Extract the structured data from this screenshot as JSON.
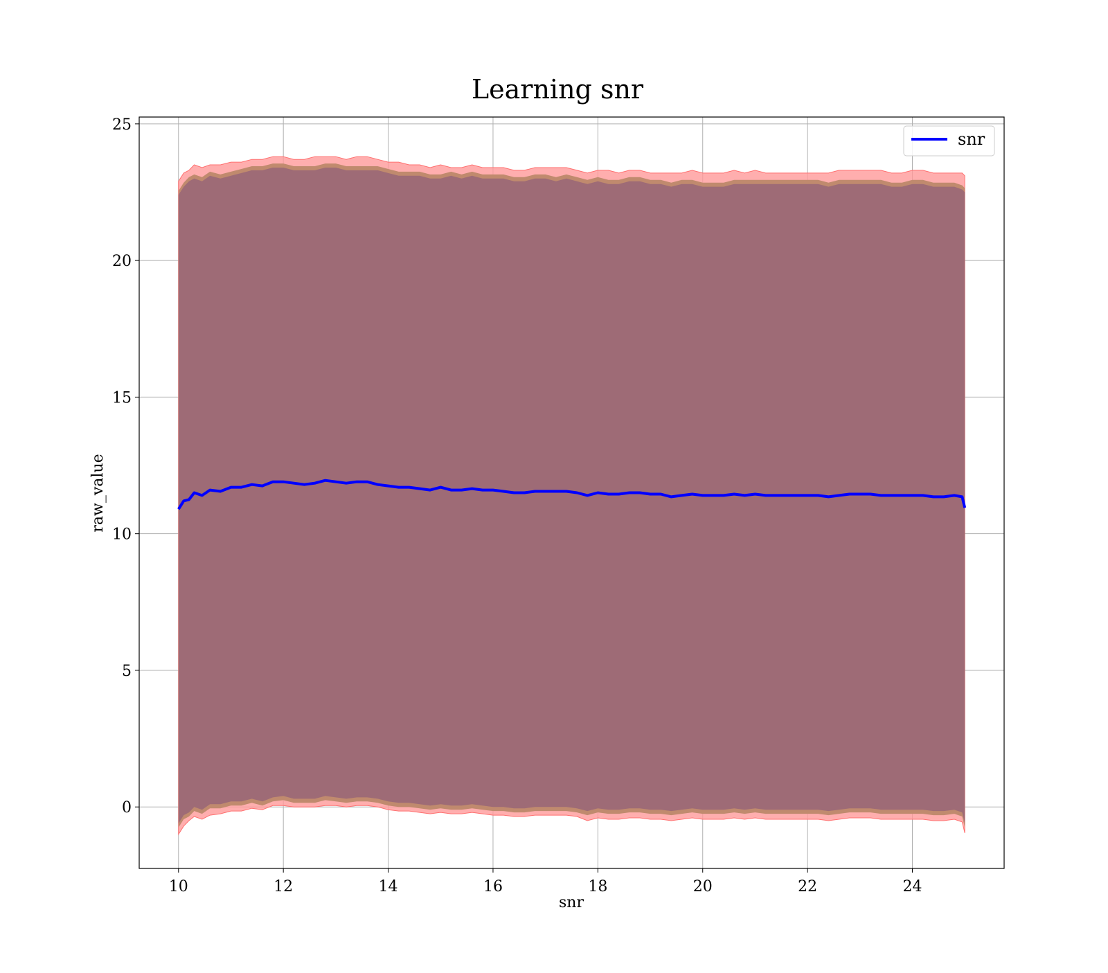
{
  "chart_data": {
    "type": "line",
    "title": "Learning snr",
    "xlabel": "snr",
    "ylabel": "raw_value",
    "xlim": [
      9.25,
      25.75
    ],
    "ylim": [
      -2.25,
      25.25
    ],
    "x_ticks": [
      10,
      12,
      14,
      16,
      18,
      20,
      22,
      24
    ],
    "y_ticks": [
      0,
      5,
      10,
      15,
      20,
      25
    ],
    "x_tick_labels": [
      "10",
      "12",
      "14",
      "16",
      "18",
      "20",
      "22",
      "24"
    ],
    "y_tick_labels": [
      "0",
      "5",
      "10",
      "15",
      "20",
      "25"
    ],
    "grid": true,
    "legend": {
      "position": "top-right",
      "entries": [
        {
          "label": "snr",
          "color": "#0000ff"
        }
      ]
    },
    "colors": {
      "line": "#0000ff",
      "outer_band": "#ff9a9a",
      "inner_band": "#9e6b76",
      "edge_band": "#c08a6e"
    },
    "series": [
      {
        "name": "snr",
        "x": [
          10.0,
          10.1,
          10.2,
          10.3,
          10.45,
          10.6,
          10.8,
          11.0,
          11.2,
          11.4,
          11.6,
          11.8,
          12.0,
          12.2,
          12.4,
          12.6,
          12.8,
          13.0,
          13.2,
          13.4,
          13.6,
          13.8,
          14.0,
          14.2,
          14.4,
          14.6,
          14.8,
          15.0,
          15.2,
          15.4,
          15.6,
          15.8,
          16.0,
          16.2,
          16.4,
          16.6,
          16.8,
          17.0,
          17.2,
          17.4,
          17.6,
          17.8,
          18.0,
          18.2,
          18.4,
          18.6,
          18.8,
          19.0,
          19.2,
          19.4,
          19.6,
          19.8,
          20.0,
          20.2,
          20.4,
          20.6,
          20.8,
          21.0,
          21.2,
          21.4,
          21.6,
          21.8,
          22.0,
          22.2,
          22.4,
          22.6,
          22.8,
          23.0,
          23.2,
          23.4,
          23.6,
          23.8,
          24.0,
          24.2,
          24.4,
          24.6,
          24.8,
          24.95,
          25.0
        ],
        "y": [
          10.9,
          11.2,
          11.25,
          11.5,
          11.4,
          11.6,
          11.55,
          11.7,
          11.7,
          11.8,
          11.75,
          11.9,
          11.9,
          11.85,
          11.8,
          11.85,
          11.95,
          11.9,
          11.85,
          11.9,
          11.9,
          11.8,
          11.75,
          11.7,
          11.7,
          11.65,
          11.6,
          11.7,
          11.6,
          11.6,
          11.65,
          11.6,
          11.6,
          11.55,
          11.5,
          11.5,
          11.55,
          11.55,
          11.55,
          11.55,
          11.5,
          11.4,
          11.5,
          11.45,
          11.45,
          11.5,
          11.5,
          11.45,
          11.45,
          11.35,
          11.4,
          11.45,
          11.4,
          11.4,
          11.4,
          11.45,
          11.4,
          11.45,
          11.4,
          11.4,
          11.4,
          11.4,
          11.4,
          11.4,
          11.35,
          11.4,
          11.45,
          11.45,
          11.45,
          11.4,
          11.4,
          11.4,
          11.4,
          11.4,
          11.35,
          11.35,
          11.4,
          11.35,
          10.95
        ],
        "inner_upper": [
          22.4,
          22.7,
          22.9,
          23.0,
          22.9,
          23.1,
          23.0,
          23.1,
          23.2,
          23.3,
          23.3,
          23.4,
          23.4,
          23.3,
          23.3,
          23.3,
          23.4,
          23.4,
          23.3,
          23.3,
          23.3,
          23.3,
          23.2,
          23.1,
          23.1,
          23.1,
          23.0,
          23.0,
          23.1,
          23.0,
          23.1,
          23.0,
          23.0,
          23.0,
          22.9,
          22.9,
          23.0,
          23.0,
          22.9,
          23.0,
          22.9,
          22.8,
          22.9,
          22.8,
          22.8,
          22.9,
          22.9,
          22.8,
          22.8,
          22.7,
          22.8,
          22.8,
          22.7,
          22.7,
          22.7,
          22.8,
          22.8,
          22.8,
          22.8,
          22.8,
          22.8,
          22.8,
          22.8,
          22.8,
          22.7,
          22.8,
          22.8,
          22.8,
          22.8,
          22.8,
          22.7,
          22.7,
          22.8,
          22.8,
          22.7,
          22.7,
          22.7,
          22.6,
          22.5
        ],
        "inner_lower": [
          -0.6,
          -0.3,
          -0.2,
          0.0,
          -0.1,
          0.1,
          0.1,
          0.2,
          0.2,
          0.3,
          0.2,
          0.35,
          0.4,
          0.3,
          0.3,
          0.3,
          0.4,
          0.35,
          0.3,
          0.35,
          0.35,
          0.3,
          0.2,
          0.15,
          0.15,
          0.1,
          0.05,
          0.1,
          0.05,
          0.05,
          0.1,
          0.05,
          0.0,
          0.0,
          -0.05,
          -0.05,
          0.0,
          0.0,
          0.0,
          0.0,
          -0.05,
          -0.15,
          -0.05,
          -0.1,
          -0.1,
          -0.05,
          -0.05,
          -0.1,
          -0.1,
          -0.15,
          -0.1,
          -0.05,
          -0.1,
          -0.1,
          -0.1,
          -0.05,
          -0.1,
          -0.05,
          -0.1,
          -0.1,
          -0.1,
          -0.1,
          -0.1,
          -0.1,
          -0.15,
          -0.1,
          -0.05,
          -0.05,
          -0.05,
          -0.1,
          -0.1,
          -0.1,
          -0.1,
          -0.1,
          -0.15,
          -0.15,
          -0.1,
          -0.2,
          -0.6
        ],
        "outer_upper": [
          22.9,
          23.2,
          23.3,
          23.5,
          23.4,
          23.5,
          23.5,
          23.6,
          23.6,
          23.7,
          23.7,
          23.8,
          23.8,
          23.7,
          23.7,
          23.8,
          23.8,
          23.8,
          23.7,
          23.8,
          23.8,
          23.7,
          23.6,
          23.6,
          23.5,
          23.5,
          23.4,
          23.5,
          23.4,
          23.4,
          23.5,
          23.4,
          23.4,
          23.4,
          23.3,
          23.3,
          23.4,
          23.4,
          23.4,
          23.4,
          23.3,
          23.2,
          23.3,
          23.3,
          23.2,
          23.3,
          23.3,
          23.2,
          23.2,
          23.2,
          23.2,
          23.3,
          23.2,
          23.2,
          23.2,
          23.3,
          23.2,
          23.3,
          23.2,
          23.2,
          23.2,
          23.2,
          23.2,
          23.2,
          23.2,
          23.3,
          23.3,
          23.3,
          23.3,
          23.3,
          23.2,
          23.2,
          23.3,
          23.3,
          23.2,
          23.2,
          23.2,
          23.2,
          23.1
        ],
        "outer_lower": [
          -1.0,
          -0.7,
          -0.5,
          -0.35,
          -0.45,
          -0.3,
          -0.25,
          -0.15,
          -0.15,
          -0.05,
          -0.1,
          0.05,
          0.05,
          0.0,
          0.0,
          0.0,
          0.05,
          0.05,
          0.0,
          0.05,
          0.05,
          0.0,
          -0.1,
          -0.15,
          -0.15,
          -0.2,
          -0.25,
          -0.2,
          -0.25,
          -0.25,
          -0.2,
          -0.25,
          -0.3,
          -0.3,
          -0.35,
          -0.35,
          -0.3,
          -0.3,
          -0.3,
          -0.3,
          -0.35,
          -0.5,
          -0.4,
          -0.45,
          -0.45,
          -0.4,
          -0.4,
          -0.45,
          -0.45,
          -0.5,
          -0.45,
          -0.4,
          -0.45,
          -0.45,
          -0.45,
          -0.4,
          -0.45,
          -0.4,
          -0.45,
          -0.45,
          -0.45,
          -0.45,
          -0.45,
          -0.45,
          -0.5,
          -0.45,
          -0.4,
          -0.4,
          -0.4,
          -0.45,
          -0.45,
          -0.45,
          -0.45,
          -0.45,
          -0.5,
          -0.5,
          -0.45,
          -0.55,
          -0.95
        ]
      }
    ]
  }
}
